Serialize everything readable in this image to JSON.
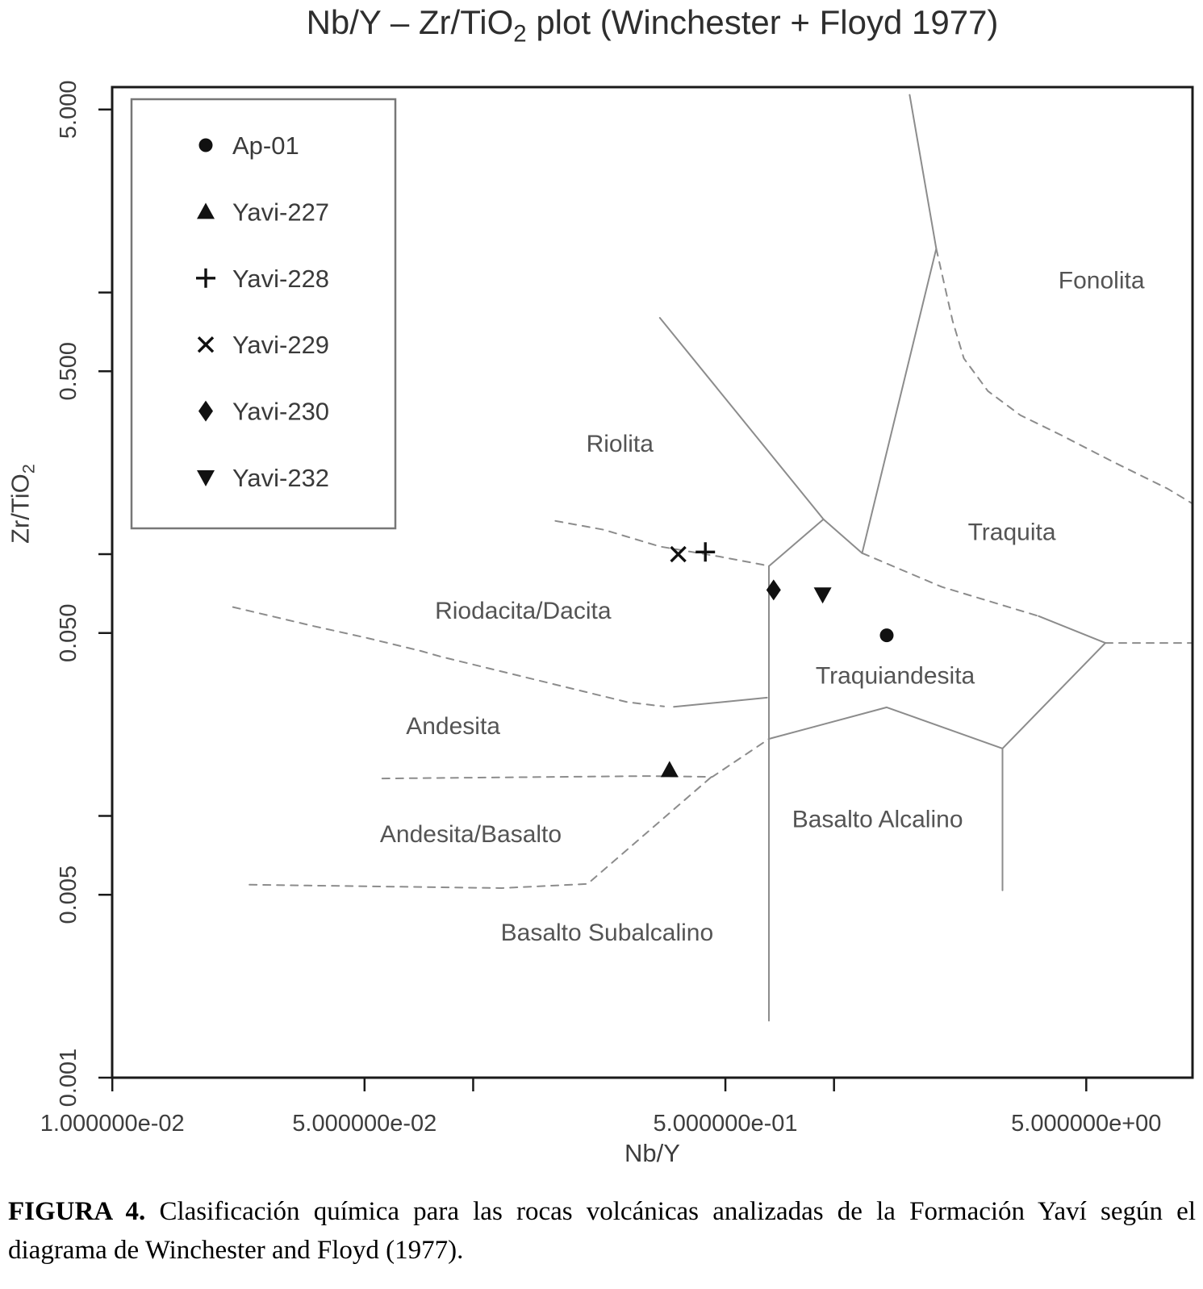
{
  "title": {
    "pre": "Nb/Y – Zr/TiO",
    "sub": "2",
    "post": " plot (Winchester + Floyd 1977)"
  },
  "axes": {
    "x": {
      "label": "Nb/Y",
      "scale": "log",
      "lim": [
        0.00999,
        9.85
      ],
      "ticks": [
        {
          "v": 0.01,
          "label": "1.000000e-02"
        },
        {
          "v": 0.05,
          "label": "5.000000e-02"
        },
        {
          "v": 0.1,
          "label": ""
        },
        {
          "v": 0.5,
          "label": "5.000000e-01"
        },
        {
          "v": 1.0,
          "label": ""
        },
        {
          "v": 5.0,
          "label": "5.000000e+00"
        }
      ]
    },
    "y": {
      "label_pre": "Zr/TiO",
      "label_sub": "2",
      "scale": "log",
      "lim": [
        0.001,
        6.09
      ],
      "ticks": [
        {
          "v": 5.0,
          "label": "5.000"
        },
        {
          "v": 1.0,
          "label": ""
        },
        {
          "v": 0.5,
          "label": "0.500"
        },
        {
          "v": 0.1,
          "label": ""
        },
        {
          "v": 0.05,
          "label": "0.050"
        },
        {
          "v": 0.01,
          "label": ""
        },
        {
          "v": 0.005,
          "label": "0.005"
        },
        {
          "v": 0.001,
          "label": "0.001"
        }
      ]
    }
  },
  "chart_data": {
    "type": "scatter",
    "title": "Nb/Y – Zr/TiO2 plot (Winchester + Floyd 1977)",
    "xlabel": "Nb/Y",
    "ylabel": "Zr/TiO2",
    "xlim": [
      0.00999,
      9.85
    ],
    "ylim": [
      0.001,
      6.09
    ],
    "legend_position": "top-left",
    "series": [
      {
        "name": "Ap-01",
        "marker": "circle",
        "points": [
          [
            1.4,
            0.049
          ]
        ]
      },
      {
        "name": "Yavi-227",
        "marker": "triangle-up",
        "points": [
          [
            0.35,
            0.015
          ]
        ]
      },
      {
        "name": "Yavi-228",
        "marker": "plus",
        "points": [
          [
            0.44,
            0.102
          ]
        ]
      },
      {
        "name": "Yavi-229",
        "marker": "x",
        "points": [
          [
            0.37,
            0.1
          ]
        ]
      },
      {
        "name": "Yavi-230",
        "marker": "diamond",
        "points": [
          [
            0.68,
            0.073
          ]
        ]
      },
      {
        "name": "Yavi-232",
        "marker": "triangle-down",
        "points": [
          [
            0.93,
            0.07
          ]
        ]
      }
    ],
    "field_labels": [
      {
        "text": "Riolita",
        "x": 0.255,
        "y": 0.264
      },
      {
        "text": "Fonolita",
        "x": 5.51,
        "y": 1.11
      },
      {
        "text": "Traquita",
        "x": 3.11,
        "y": 0.121
      },
      {
        "text": "Riodacita/Dacita",
        "x": 0.1375,
        "y": 0.0607
      },
      {
        "text": "Traquiandesita",
        "x": 1.478,
        "y": 0.0343
      },
      {
        "text": "Andesita",
        "x": 0.088,
        "y": 0.022
      },
      {
        "text": "Basalto Alcalino",
        "x": 1.32,
        "y": 0.0097
      },
      {
        "text": "Andesita/Basalto",
        "x": 0.0985,
        "y": 0.0085
      },
      {
        "text": "Basalto Subalcalino",
        "x": 0.235,
        "y": 0.00358
      }
    ],
    "boundaries": [
      {
        "id": "alkaline-divider",
        "style": "solid",
        "points": [
          [
            0.66,
            0.09
          ],
          [
            0.66,
            0.00165
          ]
        ]
      },
      {
        "id": "riolita-traquita",
        "style": "solid",
        "points": [
          [
            0.329,
            0.8
          ],
          [
            0.935,
            0.136
          ]
        ]
      },
      {
        "id": "traquita-apex-left",
        "style": "solid",
        "points": [
          [
            0.935,
            0.136
          ],
          [
            0.66,
            0.09
          ]
        ]
      },
      {
        "id": "traquita-apex-right",
        "style": "solid",
        "points": [
          [
            0.935,
            0.136
          ],
          [
            1.196,
            0.101
          ]
        ]
      },
      {
        "id": "traquita-fonolita",
        "style": "solid",
        "points": [
          [
            1.62,
            5.69
          ],
          [
            1.92,
            1.47
          ],
          [
            1.196,
            0.101
          ]
        ]
      },
      {
        "id": "fonolita-upper",
        "style": "dashed",
        "points": [
          [
            1.92,
            1.47
          ],
          [
            2.13,
            0.78
          ],
          [
            2.29,
            0.56
          ],
          [
            2.67,
            0.42
          ],
          [
            3.28,
            0.34
          ],
          [
            4.24,
            0.286
          ],
          [
            5.95,
            0.225
          ],
          [
            8.4,
            0.178
          ],
          [
            9.85,
            0.156
          ]
        ]
      },
      {
        "id": "traquita-traquiandesita",
        "style": "dashed",
        "points": [
          [
            1.196,
            0.101
          ],
          [
            1.99,
            0.075
          ],
          [
            3.69,
            0.058
          ]
        ]
      },
      {
        "id": "traquiandesita-fonolita",
        "style": "solid",
        "points": [
          [
            3.69,
            0.058
          ],
          [
            5.65,
            0.0458
          ]
        ]
      },
      {
        "id": "fonolita-lower",
        "style": "dashed",
        "points": [
          [
            5.65,
            0.0458
          ],
          [
            9.85,
            0.0458
          ]
        ]
      },
      {
        "id": "traquiandesita-right",
        "style": "solid",
        "points": [
          [
            5.65,
            0.0458
          ],
          [
            2.93,
            0.0181
          ]
        ]
      },
      {
        "id": "basalto-alcalino-right",
        "style": "solid",
        "points": [
          [
            2.93,
            0.0181
          ],
          [
            2.93,
            0.0052
          ]
        ]
      },
      {
        "id": "traquiandesita-basalto-alcalino",
        "style": "solid",
        "points": [
          [
            0.66,
            0.0197
          ],
          [
            1.4,
            0.026
          ],
          [
            2.93,
            0.0181
          ]
        ]
      },
      {
        "id": "riodacita-andesita",
        "style": "dashed",
        "points": [
          [
            0.0216,
            0.0628
          ],
          [
            0.0362,
            0.0531
          ],
          [
            0.051,
            0.0478
          ],
          [
            0.0716,
            0.0427
          ],
          [
            0.0814,
            0.0406
          ],
          [
            0.268,
            0.0272
          ],
          [
            0.338,
            0.0262
          ]
        ]
      },
      {
        "id": "riodacita-andesita-solid",
        "style": "solid",
        "points": [
          [
            0.36,
            0.0261
          ],
          [
            0.652,
            0.0283
          ]
        ]
      },
      {
        "id": "riolita-riodacita",
        "style": "dashed",
        "points": [
          [
            0.169,
            0.134
          ],
          [
            0.23,
            0.124
          ],
          [
            0.329,
            0.107
          ],
          [
            0.48,
            0.098
          ],
          [
            0.633,
            0.0912
          ],
          [
            0.66,
            0.09
          ]
        ]
      },
      {
        "id": "andesita-basalto-upper",
        "style": "dashed",
        "points": [
          [
            0.056,
            0.0139
          ],
          [
            0.3,
            0.0142
          ],
          [
            0.46,
            0.0141
          ],
          [
            0.66,
            0.0197
          ]
        ]
      },
      {
        "id": "basalto-subalcalino-upper",
        "style": "dashed",
        "points": [
          [
            0.024,
            0.00546
          ],
          [
            0.12,
            0.0053
          ],
          [
            0.2075,
            0.0055
          ],
          [
            0.46,
            0.0142
          ]
        ]
      }
    ]
  },
  "colors": {
    "background": "#ffffff",
    "frame": "#1a1a1a",
    "boundary": "#8c8c8c",
    "marker": "#111111",
    "legend_border": "#777777"
  },
  "caption": {
    "label": "FIGURA 4.",
    "line1": "Clasificación química para las rocas volcánicas analizadas de la Formación Yaví según el",
    "line2": "diagrama de Winchester and Floyd (1977)."
  }
}
